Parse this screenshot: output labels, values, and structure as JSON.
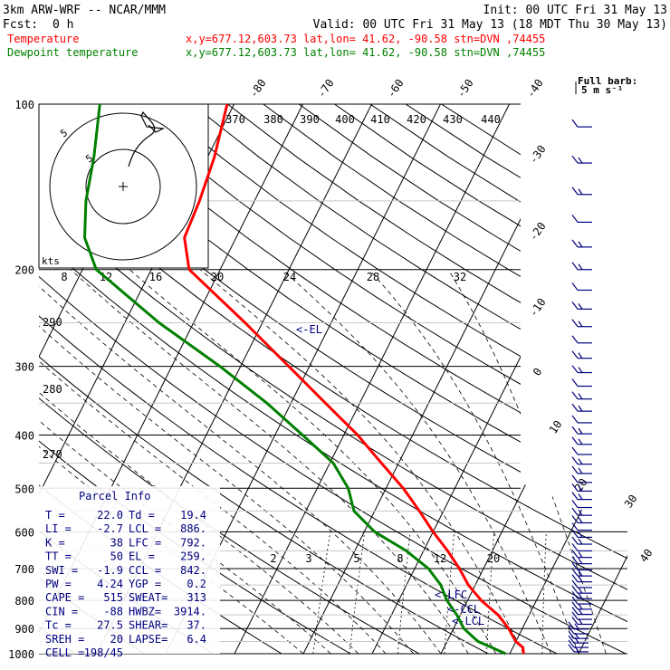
{
  "header": {
    "model": "3km ARW-WRF -- NCAR/MMM",
    "init": "Init: 00 UTC Fri 31 May 13",
    "fcst_label": "Fcst:",
    "fcst_value": "0 h",
    "valid": "Valid: 00 UTC Fri 31 May 13 (18 MDT Thu 30 May 13)",
    "temperature_line": {
      "name": "Temperature",
      "info": "x,y=677.12,603.73   lat,lon= 41.62, -90.58   stn=DVN ,74455",
      "color": "#ff0000"
    },
    "dewpoint_line": {
      "name": "Dewpoint temperature",
      "info": "x,y=677.12,603.73   lat,lon= 41.62, -90.58   stn=DVN ,74455",
      "color": "#008000"
    }
  },
  "barb_legend": {
    "title": "Full barb:",
    "value": "5 m s⁻¹"
  },
  "hodograph": {
    "ring_labels": [
      "5",
      "5"
    ],
    "kts_label": "kts",
    "speed_ticks": [
      "8",
      "12",
      "16",
      "20",
      "24",
      "28",
      "32"
    ]
  },
  "parcel_info": {
    "title": "Parcel Info",
    "rows": [
      {
        "l": "T   =",
        "lv": "22.0",
        "r": "Td  =",
        "rv": "19.4"
      },
      {
        "l": "LI  =",
        "lv": "-2.7",
        "r": "LCL =",
        "rv": "886."
      },
      {
        "l": "K   =",
        "lv": "38",
        "r": "LFC =",
        "rv": "792."
      },
      {
        "l": "TT  =",
        "lv": "50",
        "r": "EL  =",
        "rv": "259."
      },
      {
        "l": "SWI =",
        "lv": "-1.9",
        "r": "CCL =",
        "rv": "842."
      },
      {
        "l": "PW  =",
        "lv": "4.24",
        "r": "YGP =",
        "rv": "0.2"
      },
      {
        "l": "CAPE =",
        "lv": "515",
        "r": "SWEAT=",
        "rv": "313"
      },
      {
        "l": "CIN =",
        "lv": "-88",
        "r": "HWBZ=",
        "rv": "3914."
      },
      {
        "l": "Tc  =",
        "lv": "27.5",
        "r": "SHEAR=",
        "rv": "37."
      },
      {
        "l": "SREH =",
        "lv": "20",
        "r": "LAPSE=",
        "rv": "6.4"
      },
      {
        "l": "CELL =",
        "lv": "198/45",
        "r": "",
        "rv": ""
      }
    ]
  },
  "levels_labels": {
    "el": "<-EL",
    "lfc": "<-LFC",
    "ccl": "<-CCL",
    "lcl": "<-LCL"
  },
  "chart_data": {
    "type": "line",
    "title": "",
    "ylabel": "",
    "xlabel": "",
    "pressure_levels": [
      100,
      200,
      300,
      400,
      500,
      600,
      700,
      800,
      900,
      1000
    ],
    "pressure_labels": [
      "100",
      "200",
      "300",
      "400",
      "500",
      "600",
      "700",
      "800",
      "900",
      "1000"
    ],
    "isotherm_labels": [
      "-80",
      "-70",
      "-60",
      "-50",
      "-40",
      "-30",
      "-20",
      "-10",
      "0",
      "10",
      "20",
      "30",
      "40"
    ],
    "theta_labels": [
      "370",
      "380",
      "390",
      "400",
      "410",
      "420",
      "430",
      "440"
    ],
    "dry_adiabat_side_labels": [
      "290",
      "280",
      "270"
    ],
    "mixing_ratio_labels": [
      "2",
      "3",
      "5",
      "8",
      "12",
      "20"
    ],
    "series": [
      {
        "name": "Temperature",
        "color": "#ff0000",
        "points": [
          {
            "p": 1000,
            "t": 22.0
          },
          {
            "p": 975,
            "t": 21.5
          },
          {
            "p": 950,
            "t": 20.0
          },
          {
            "p": 925,
            "t": 19.0
          },
          {
            "p": 900,
            "t": 18.0
          },
          {
            "p": 850,
            "t": 15.5
          },
          {
            "p": 800,
            "t": 12.0
          },
          {
            "p": 750,
            "t": 9.0
          },
          {
            "p": 700,
            "t": 6.5
          },
          {
            "p": 650,
            "t": 3.5
          },
          {
            "p": 600,
            "t": 0.0
          },
          {
            "p": 550,
            "t": -3.5
          },
          {
            "p": 500,
            "t": -7.5
          },
          {
            "p": 450,
            "t": -12.5
          },
          {
            "p": 400,
            "t": -18.0
          },
          {
            "p": 350,
            "t": -25.0
          },
          {
            "p": 300,
            "t": -33.0
          },
          {
            "p": 250,
            "t": -42.5
          },
          {
            "p": 200,
            "t": -54.5
          },
          {
            "p": 175,
            "t": -57.5
          },
          {
            "p": 150,
            "t": -58.0
          },
          {
            "p": 125,
            "t": -59.0
          },
          {
            "p": 100,
            "t": -61.0
          }
        ]
      },
      {
        "name": "Dewpoint temperature",
        "color": "#008000",
        "points": [
          {
            "p": 1000,
            "t": 19.4
          },
          {
            "p": 975,
            "t": 17.0
          },
          {
            "p": 950,
            "t": 14.5
          },
          {
            "p": 925,
            "t": 13.0
          },
          {
            "p": 900,
            "t": 11.5
          },
          {
            "p": 850,
            "t": 9.5
          },
          {
            "p": 800,
            "t": 7.0
          },
          {
            "p": 750,
            "t": 5.0
          },
          {
            "p": 700,
            "t": 2.0
          },
          {
            "p": 650,
            "t": -2.5
          },
          {
            "p": 600,
            "t": -8.5
          },
          {
            "p": 550,
            "t": -13.0
          },
          {
            "p": 500,
            "t": -15.5
          },
          {
            "p": 450,
            "t": -19.5
          },
          {
            "p": 400,
            "t": -26.0
          },
          {
            "p": 350,
            "t": -33.5
          },
          {
            "p": 300,
            "t": -43.0
          },
          {
            "p": 250,
            "t": -55.0
          },
          {
            "p": 200,
            "t": -68.0
          },
          {
            "p": 175,
            "t": -72.0
          },
          {
            "p": 150,
            "t": -74.5
          },
          {
            "p": 125,
            "t": -76.5
          },
          {
            "p": 100,
            "t": -79.5
          }
        ]
      }
    ],
    "wind_barbs_note": "wind profile drawn on right side, full barb = 5 m/s",
    "barb_color": "#000080"
  }
}
